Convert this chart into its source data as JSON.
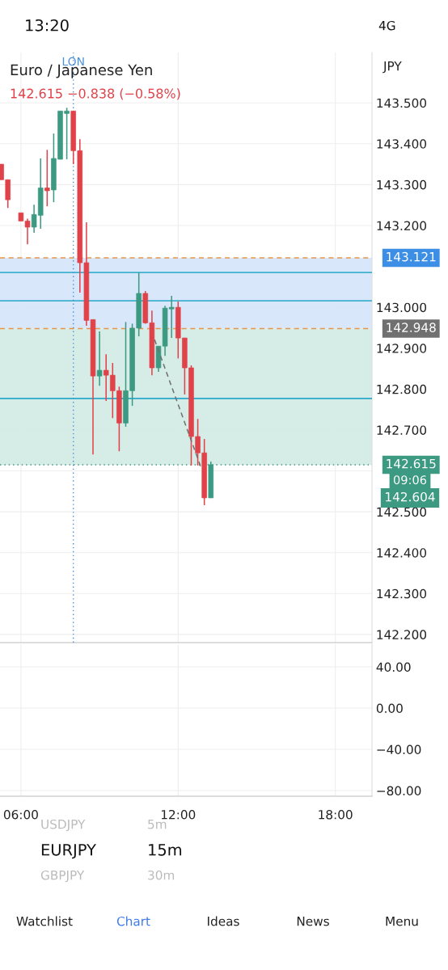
{
  "chart_data": [
    {
      "type": "candlestick",
      "title": "Euro / Japanese Yen",
      "subtitle": "142.615 −0.838 (−0.58%)",
      "x": [
        5.25,
        5.5,
        6.0,
        6.25,
        6.5,
        6.75,
        7.0,
        7.25,
        7.5,
        7.75,
        8.0,
        8.25,
        8.5,
        8.75,
        9.0,
        9.25,
        9.5,
        9.75,
        10.0,
        10.25,
        10.5,
        10.75,
        11.0,
        11.25,
        11.5,
        11.75,
        12.0,
        12.25,
        12.5,
        12.75,
        13.0,
        13.25
      ],
      "ohlc": [
        [
          143.35,
          143.35,
          143.312,
          143.312
        ],
        [
          143.312,
          143.312,
          143.243,
          143.263
        ],
        [
          143.231,
          143.231,
          143.211,
          143.211
        ],
        [
          143.211,
          143.217,
          143.154,
          143.196
        ],
        [
          143.196,
          143.251,
          143.182,
          143.227
        ],
        [
          143.225,
          143.364,
          143.192,
          143.292
        ],
        [
          143.292,
          143.385,
          143.247,
          143.285
        ],
        [
          143.287,
          143.425,
          143.257,
          143.364
        ],
        [
          143.362,
          143.48,
          143.362,
          143.48
        ],
        [
          143.474,
          143.488,
          143.362,
          143.48
        ],
        [
          143.48,
          143.48,
          143.35,
          143.383
        ],
        [
          143.383,
          143.411,
          143.036,
          143.109
        ],
        [
          143.109,
          143.208,
          142.955,
          142.968
        ],
        [
          142.97,
          142.97,
          142.64,
          142.832
        ],
        [
          142.832,
          142.941,
          142.808,
          142.846
        ],
        [
          142.846,
          142.885,
          142.771,
          142.834
        ],
        [
          142.834,
          142.864,
          142.729,
          142.796
        ],
        [
          142.796,
          142.806,
          142.648,
          142.717
        ],
        [
          142.717,
          142.964,
          142.708,
          142.796
        ],
        [
          142.796,
          142.96,
          142.759,
          142.949
        ],
        [
          142.949,
          143.085,
          142.929,
          143.034
        ],
        [
          143.034,
          143.04,
          142.96,
          142.962
        ],
        [
          142.962,
          142.992,
          142.834,
          142.852
        ],
        [
          142.852,
          142.905,
          142.842,
          142.905
        ],
        [
          142.905,
          143.004,
          142.881,
          142.998
        ],
        [
          142.996,
          143.028,
          142.925,
          143.0
        ],
        [
          143.0,
          143.014,
          142.875,
          142.925
        ],
        [
          142.925,
          142.925,
          142.787,
          142.852
        ],
        [
          142.852,
          142.858,
          142.613,
          142.684
        ],
        [
          142.684,
          142.727,
          142.613,
          142.644
        ],
        [
          142.644,
          142.678,
          142.516,
          142.534
        ],
        [
          142.534,
          142.623,
          142.534,
          142.615
        ]
      ],
      "colors": [
        "#e0424a",
        "#e0424a",
        "#e0424a",
        "#e0424a",
        "#3d9a82",
        "#3d9a82",
        "#e0424a",
        "#3d9a82",
        "#3d9a82",
        "#3d9a82",
        "#e0424a",
        "#e0424a",
        "#e0424a",
        "#e0424a",
        "#3d9a82",
        "#e0424a",
        "#e0424a",
        "#e0424a",
        "#3d9a82",
        "#3d9a82",
        "#3d9a82",
        "#e0424a",
        "#e0424a",
        "#3d9a82",
        "#3d9a82",
        "#3d9a82",
        "#e0424a",
        "#e0424a",
        "#e0424a",
        "#e0424a",
        "#e0424a",
        "#3d9a82"
      ],
      "series": [
        {
          "type": "line",
          "x": [
            11.1,
            12.87
          ],
          "values": [
            142.921,
            142.609
          ],
          "color": "#707070",
          "line_style": "dashed"
        }
      ],
      "xlim": [
        5.2,
        19.4
      ],
      "ylim": [
        142.18,
        143.623
      ],
      "yticks": [
        {
          "value": 142.2,
          "label": "142.200"
        },
        {
          "value": 142.3,
          "label": "142.300"
        },
        {
          "value": 142.4,
          "label": "142.400"
        },
        {
          "value": 142.5,
          "label": "142.500"
        },
        {
          "value": 142.6,
          "label": null
        },
        {
          "value": 142.7,
          "label": "142.700"
        },
        {
          "value": 142.8,
          "label": "142.800"
        },
        {
          "value": 142.9,
          "label": "142.900"
        },
        {
          "value": 143.0,
          "label": "143.000"
        },
        {
          "value": 143.2,
          "label": "143.200"
        },
        {
          "value": 143.3,
          "label": "143.300"
        },
        {
          "value": 143.4,
          "label": "143.400"
        },
        {
          "value": 143.5,
          "label": "143.500"
        }
      ],
      "xticks": [
        {
          "value": 6,
          "label": null
        },
        {
          "value": 12,
          "label": null
        },
        {
          "value": 18,
          "label": null
        }
      ],
      "tick_labels": "y",
      "grid": true,
      "bands": [
        {
          "axis": "y",
          "from": 142.948,
          "to": 143.121,
          "color": "#d4e6fa"
        },
        {
          "axis": "y",
          "from": 142.615,
          "to": 142.948,
          "color": "#d2ebe4"
        }
      ],
      "ref_lines": [
        {
          "axis": "y",
          "value": 143.121,
          "label": "143.121",
          "color": "#e8954a",
          "line_style": "dashed"
        },
        {
          "axis": "y",
          "value": 142.948,
          "label": "142.948",
          "color": "#e8954a",
          "line_style": "dashed"
        },
        {
          "axis": "y",
          "value": 142.615,
          "label": "142.615",
          "color": "#3d9a82",
          "line_style": "dotted"
        },
        {
          "axis": "y",
          "value": 143.085,
          "color": "#3fb1ce",
          "line_style": "solid"
        },
        {
          "axis": "y",
          "value": 143.016,
          "color": "#3fb1ce",
          "line_style": "solid"
        },
        {
          "axis": "y",
          "value": 142.777,
          "color": "#3fb1ce",
          "line_style": "solid"
        },
        {
          "axis": "x",
          "value": 8.0,
          "label": "LON",
          "color": "#4a90d9",
          "line_style": "dotted"
        }
      ],
      "annotations": [
        "JPY",
        "13:20",
        "4G",
        "09:06",
        "142.604",
        "USDJPY",
        "5m",
        "EURJPY",
        "15m",
        "GBPJPY",
        "30m",
        "Watchlist",
        "Chart",
        "Ideas",
        "News",
        "Menu"
      ]
    },
    {
      "type": "line",
      "xlim": [
        5.2,
        19.4
      ],
      "ylim": [
        -85.5,
        62
      ],
      "yticks": [
        {
          "value": 40,
          "label": "40.00"
        },
        {
          "value": 0,
          "label": "0.00"
        },
        {
          "value": -40,
          "label": "−40.00"
        },
        {
          "value": -80,
          "label": "−80.00"
        }
      ],
      "xticks": [
        {
          "value": 6,
          "label": "06:00"
        },
        {
          "value": 12,
          "label": "12:00"
        },
        {
          "value": 18,
          "label": "18:00"
        }
      ],
      "grid": true
    }
  ]
}
